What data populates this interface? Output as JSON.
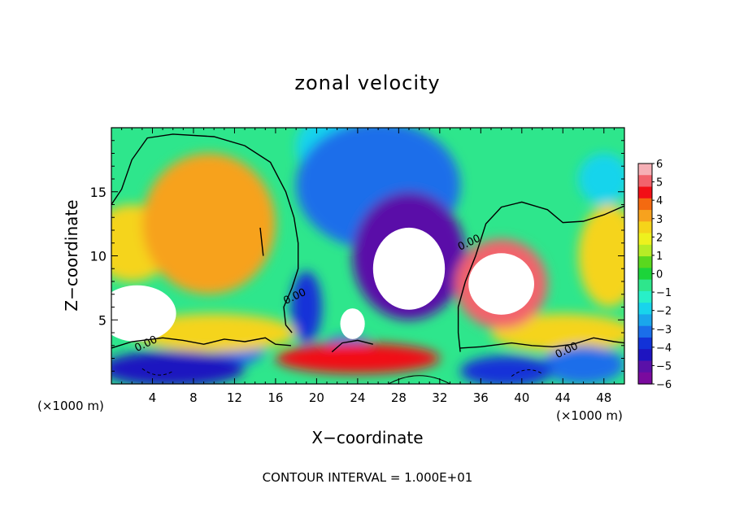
{
  "chart_data": {
    "type": "heatmap",
    "title": "zonal velocity",
    "xlabel": "X−coordinate",
    "ylabel": "Z−coordinate",
    "x_unit_left": "(×1000 m)",
    "x_unit_right": "(×1000 m)",
    "xlim": [
      0,
      50
    ],
    "ylim": [
      0,
      20
    ],
    "x_ticks": [
      4,
      8,
      12,
      16,
      20,
      24,
      28,
      32,
      36,
      40,
      44,
      48
    ],
    "y_ticks": [
      5,
      10,
      15
    ],
    "colorbar": {
      "ticks": [
        "6",
        "5",
        "4",
        "3",
        "2",
        "1",
        "0",
        "−1",
        "−2",
        "−3",
        "−4",
        "−5",
        "−6"
      ],
      "range": [
        -6,
        6
      ],
      "colors": [
        "#f6b0b6",
        "#f2636c",
        "#f20f16",
        "#f46a10",
        "#f7a21e",
        "#f5d41a",
        "#eef11e",
        "#b7ec26",
        "#5ad81e",
        "#1cd43a",
        "#2ee68c",
        "#28f0c8",
        "#18d4ec",
        "#1aa6ec",
        "#1a6eea",
        "#1232d8",
        "#1e14c0",
        "#5a10a8",
        "#7a0a9e"
      ],
      "clip_color": "#ffffff"
    },
    "contour_label": "0.00",
    "contour_labels": [
      {
        "x": 3.5,
        "z": 2.9,
        "text": "0.00"
      },
      {
        "x": 18.0,
        "z": 6.6,
        "text": "0.00"
      },
      {
        "x": 35.0,
        "z": 10.8,
        "text": "0.00"
      },
      {
        "x": 44.5,
        "z": 2.4,
        "text": "0.00"
      }
    ],
    "features": [
      {
        "kind": "blob",
        "x": 9.5,
        "z": 12.5,
        "rx": 6.5,
        "rz": 5.5,
        "value": 3.2
      },
      {
        "kind": "blob",
        "x": 2.0,
        "z": 11.0,
        "rx": 4.0,
        "rz": 3.0,
        "value": 2.5
      },
      {
        "kind": "blob",
        "x": 48.5,
        "z": 10.0,
        "rx": 3.0,
        "rz": 4.0,
        "value": 2.6
      },
      {
        "kind": "blob",
        "x": 38.0,
        "z": 7.8,
        "rx": 4.5,
        "rz": 3.5,
        "value": 5.2
      },
      {
        "kind": "blob",
        "x": 38.0,
        "z": 7.8,
        "rx": 3.2,
        "rz": 2.4,
        "value": 9.0
      },
      {
        "kind": "blob",
        "x": 2.5,
        "z": 5.5,
        "rx": 3.8,
        "rz": 2.2,
        "value": 8.0
      },
      {
        "kind": "blob",
        "x": 26.0,
        "z": 15.5,
        "rx": 8.0,
        "rz": 5.0,
        "value": -3.6
      },
      {
        "kind": "blob",
        "x": 29.0,
        "z": 10.0,
        "rx": 5.5,
        "rz": 5.0,
        "value": -5.0
      },
      {
        "kind": "blob",
        "x": 29.0,
        "z": 9.0,
        "rx": 3.5,
        "rz": 3.2,
        "value": -9.0
      },
      {
        "kind": "blob",
        "x": 21.0,
        "z": 18.5,
        "rx": 3.0,
        "rz": 2.5,
        "value": -2.2
      },
      {
        "kind": "blob",
        "x": 19.0,
        "z": 6.0,
        "rx": 1.5,
        "rz": 2.8,
        "value": -4.0
      },
      {
        "kind": "blob",
        "x": 24.0,
        "z": 2.0,
        "rx": 8.0,
        "rz": 1.2,
        "value": 4.5
      },
      {
        "kind": "blob",
        "x": 23.5,
        "z": 4.7,
        "rx": 1.2,
        "rz": 1.2,
        "value": 8.0
      },
      {
        "kind": "blob",
        "x": 23.0,
        "z": 2.8,
        "rx": 2.5,
        "rz": 1.0,
        "value": -3.5
      },
      {
        "kind": "blob",
        "x": 6.0,
        "z": 1.2,
        "rx": 7.0,
        "rz": 1.4,
        "value": -4.5
      },
      {
        "kind": "blob",
        "x": 12.5,
        "z": 3.0,
        "rx": 2.5,
        "rz": 1.5,
        "value": -3.0
      },
      {
        "kind": "blob",
        "x": 38.5,
        "z": 1.0,
        "rx": 4.5,
        "rz": 1.2,
        "value": -4.0
      },
      {
        "kind": "blob",
        "x": 46.0,
        "z": 1.5,
        "rx": 4.0,
        "rz": 1.5,
        "value": -3.5
      },
      {
        "kind": "blob",
        "x": 48.0,
        "z": 16.0,
        "rx": 2.5,
        "rz": 2.0,
        "value": -2.0
      },
      {
        "kind": "blob",
        "x": 10.0,
        "z": 4.0,
        "rx": 8.0,
        "rz": 1.5,
        "value": 3.0
      },
      {
        "kind": "blob",
        "x": 44.0,
        "z": 4.0,
        "rx": 7.0,
        "rz": 1.5,
        "value": 3.0
      }
    ],
    "footer": "CONTOUR INTERVAL = 1.000E+01"
  }
}
